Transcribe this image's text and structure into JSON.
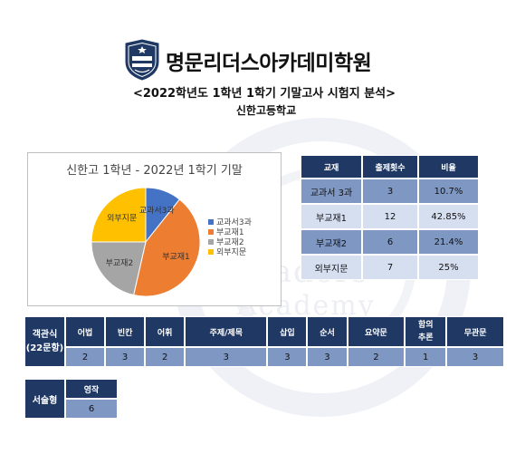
{
  "header": {
    "brand": "명문리더스아카데미학원",
    "subtitle": "<2022학년도 1학년 1학기 기말고사 시험지 분석>",
    "school": "신한고등학교",
    "logo_text": "Leaders Academy"
  },
  "watermark": {
    "line1": "Leaders",
    "line2": "Academy"
  },
  "chart_data": {
    "type": "pie",
    "title": "신한고 1학년 - 2022년 1학기 기말",
    "labels": [
      "교과서3과",
      "부교재1",
      "부교재2",
      "외부지문"
    ],
    "values": [
      10.7,
      42.85,
      21.4,
      25
    ],
    "colors": [
      "#4472c4",
      "#ed7d31",
      "#a5a5a5",
      "#ffc000"
    ],
    "legend_position": "right"
  },
  "ratio_table": {
    "headers": [
      "교재",
      "출제횟수",
      "비율"
    ],
    "rows": [
      [
        "교과서 3과",
        "3",
        "10.7%"
      ],
      [
        "부교재1",
        "12",
        "42.85%"
      ],
      [
        "부교재2",
        "6",
        "21.4%"
      ],
      [
        "외부지문",
        "7",
        "25%"
      ]
    ]
  },
  "types_table": {
    "side_label_1": "객관식",
    "side_label_2": "(22문항)",
    "headers": [
      "어법",
      "빈칸",
      "어휘",
      "주제/제목",
      "삽입",
      "순서",
      "요약문",
      "함의 추론",
      "무관문"
    ],
    "values": [
      "2",
      "3",
      "2",
      "3",
      "3",
      "3",
      "2",
      "1",
      "3"
    ]
  },
  "essay_table": {
    "side_label": "서술형",
    "header": "영작",
    "value": "6"
  }
}
